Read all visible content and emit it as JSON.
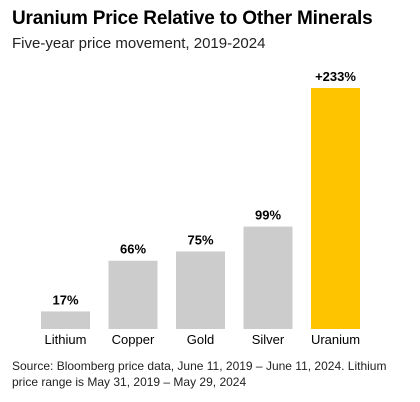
{
  "header": {
    "title": "Uranium Price Relative to Other Minerals",
    "subtitle": "Five-year price movement, 2019-2024"
  },
  "footer": {
    "source": "Source: Bloomberg price data, June 11, 2019 – June 11, 2024. Lithium price range is May 31, 2019 – May 29, 2024"
  },
  "colors": {
    "default_bar": "#cccccc",
    "highlight_bar": "#ffc400"
  },
  "chart_data": {
    "type": "bar",
    "title": "Uranium Price Relative to Other Minerals",
    "subtitle": "Five-year price movement, 2019-2024",
    "categories": [
      "Lithium",
      "Copper",
      "Gold",
      "Silver",
      "Uranium"
    ],
    "values": [
      17,
      66,
      75,
      99,
      233
    ],
    "data_labels": [
      "17%",
      "66%",
      "75%",
      "99%",
      "+233%"
    ],
    "highlight": "Uranium",
    "unit": "%",
    "ylim": [
      0,
      233
    ],
    "grid": false,
    "legend": "none"
  }
}
